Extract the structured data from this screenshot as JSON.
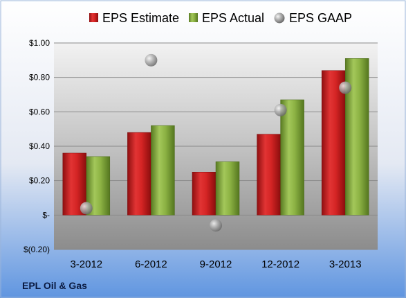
{
  "chart_data": {
    "type": "bar",
    "categories": [
      "3-2012",
      "6-2012",
      "9-2012",
      "12-2012",
      "3-2013"
    ],
    "series": [
      {
        "name": "EPS Estimate",
        "kind": "bar",
        "color": "#cc1f1f",
        "values": [
          0.36,
          0.48,
          0.25,
          0.47,
          0.84
        ]
      },
      {
        "name": "EPS Actual",
        "kind": "bar",
        "color": "#86ad3c",
        "values": [
          0.34,
          0.52,
          0.31,
          0.67,
          0.91
        ]
      },
      {
        "name": "EPS GAAP",
        "kind": "marker",
        "color": "#9a9a9a",
        "values": [
          0.04,
          0.9,
          -0.06,
          0.61,
          0.74
        ]
      }
    ],
    "ylim": [
      -0.2,
      1.0
    ],
    "yticks": [
      1.0,
      0.8,
      0.6,
      0.4,
      0.2,
      0.0,
      -0.2
    ],
    "ytick_labels": [
      "$1.00",
      "$0.80",
      "$0.60",
      "$0.40",
      "$0.20",
      "$-",
      "$(0.20)"
    ],
    "grid": true,
    "legend_position": "top",
    "footer": "EPL Oil & Gas"
  }
}
